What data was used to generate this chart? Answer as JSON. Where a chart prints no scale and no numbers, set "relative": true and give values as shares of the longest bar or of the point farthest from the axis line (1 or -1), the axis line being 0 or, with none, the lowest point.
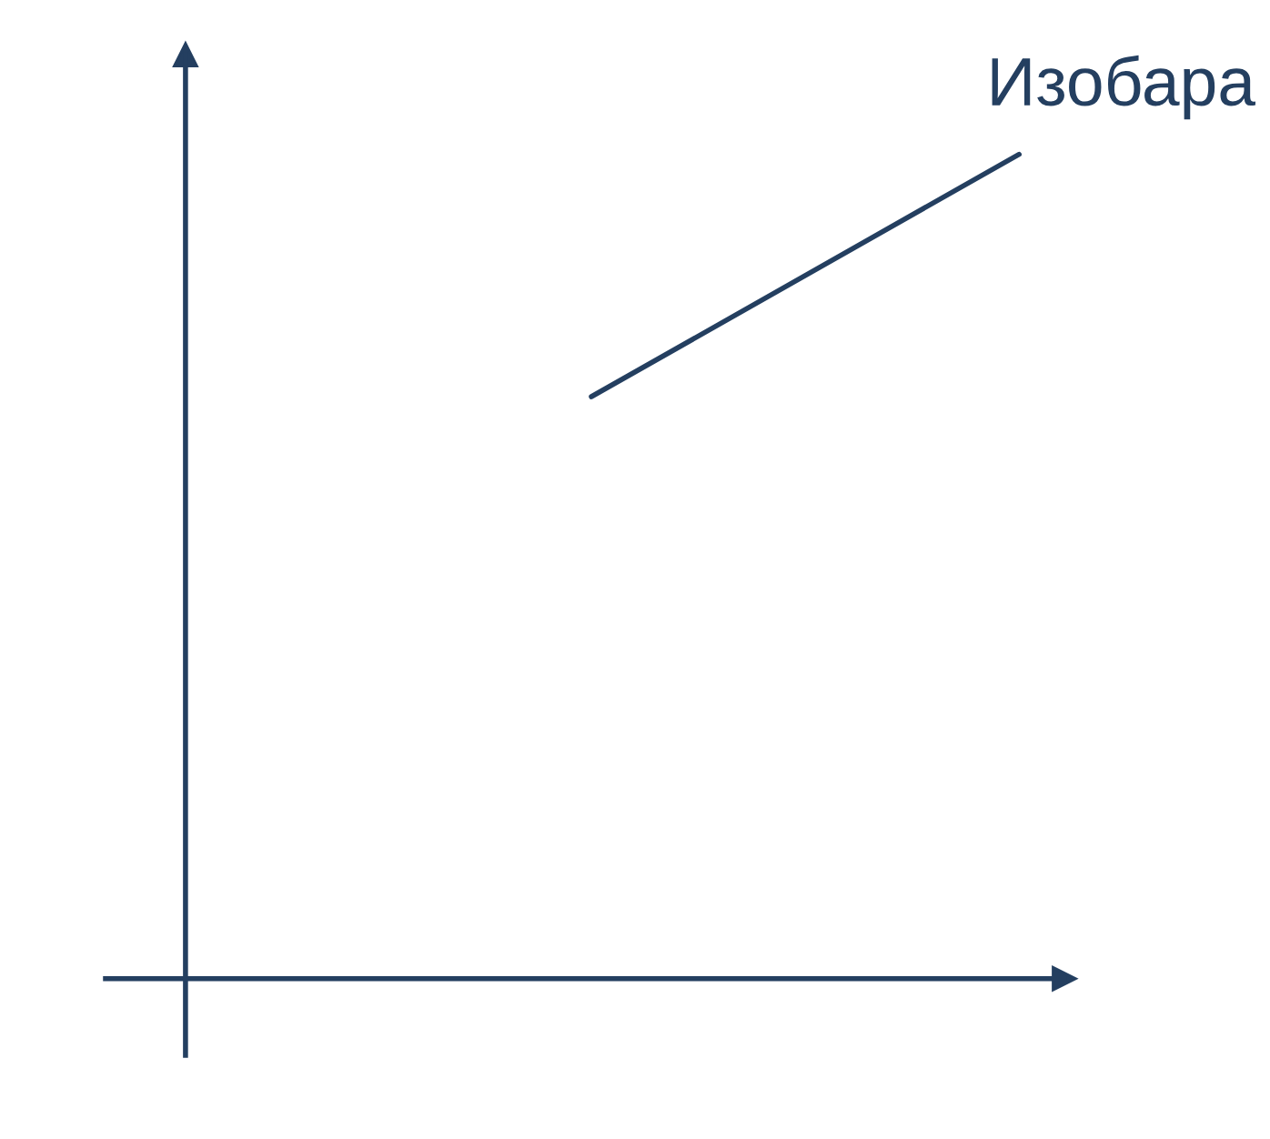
{
  "chart_data": {
    "type": "line",
    "relative": true,
    "categories": [
      null,
      null
    ],
    "series": [
      {
        "color": "#243f60",
        "values": [
          0.706,
          1
        ]
      }
    ],
    "annotations": [
      "Изобара"
    ],
    "legend": false,
    "marker": "none",
    "line_style": "solid"
  }
}
